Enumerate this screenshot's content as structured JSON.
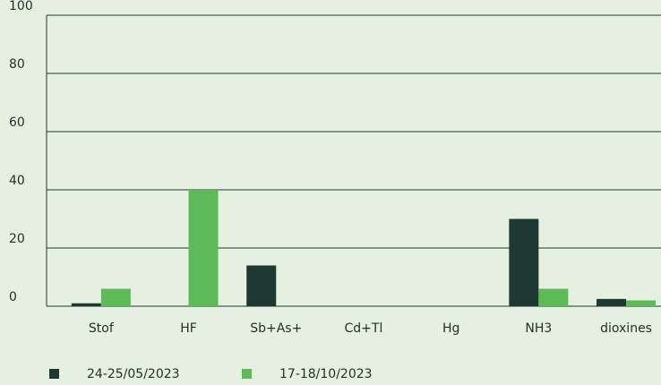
{
  "chart_data": {
    "type": "bar",
    "categories": [
      "Stof",
      "HF",
      "Sb+As+",
      "Cd+Tl",
      "Hg",
      "NH3",
      "dioxines"
    ],
    "series": [
      {
        "name": "24-25/05/2023",
        "color": "#1e3832",
        "values": [
          1,
          0,
          14,
          0,
          0,
          30,
          2.5
        ]
      },
      {
        "name": "17-18/10/2023",
        "color": "#5cbb57",
        "values": [
          6,
          40,
          0,
          0,
          0,
          6,
          2
        ]
      }
    ],
    "ylim": [
      0,
      100
    ],
    "yticks": [
      0,
      20,
      40,
      60,
      80,
      100
    ],
    "grid": true
  }
}
